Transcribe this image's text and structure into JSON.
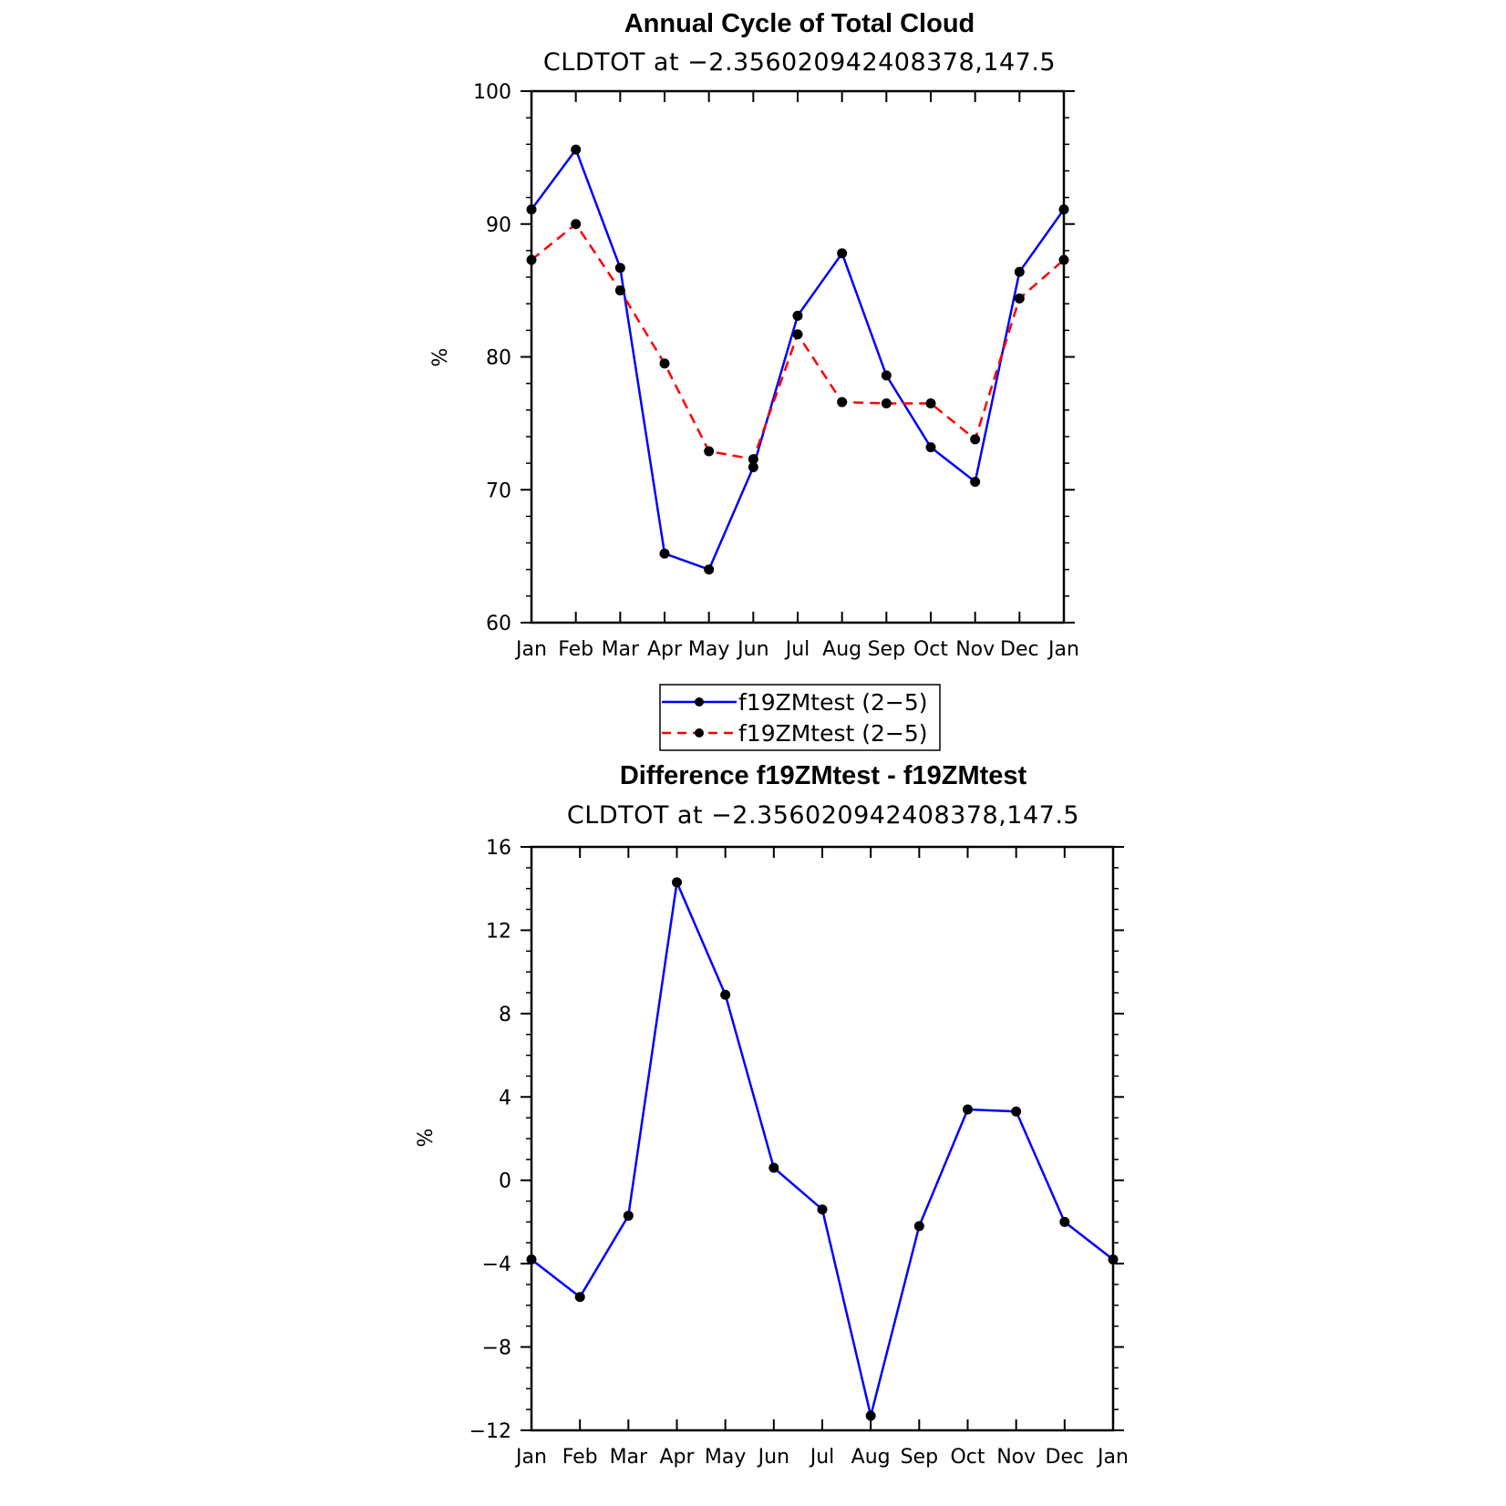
{
  "chart_data": [
    {
      "type": "line",
      "title": "Annual Cycle of Total Cloud",
      "subtitle": "CLDTOT at −2.356020942408378,147.5",
      "xlabel": "",
      "ylabel": "%",
      "categories": [
        "Jan",
        "Feb",
        "Mar",
        "Apr",
        "May",
        "Jun",
        "Jul",
        "Aug",
        "Sep",
        "Oct",
        "Nov",
        "Dec",
        "Jan"
      ],
      "ylim": [
        60,
        100
      ],
      "yticks": [
        "60",
        "70",
        "80",
        "90",
        "100"
      ],
      "ytick_values": [
        60,
        70,
        80,
        90,
        100
      ],
      "series": [
        {
          "name": "f19ZMtest (2−5)",
          "color": "#0000ff",
          "style": "solid",
          "values": [
            91.1,
            95.6,
            86.7,
            65.2,
            64.0,
            71.7,
            83.1,
            87.8,
            78.6,
            73.2,
            70.6,
            86.4,
            91.1
          ]
        },
        {
          "name": "f19ZMtest (2−5)",
          "color": "#ff0000",
          "style": "dashed",
          "values": [
            87.3,
            90.0,
            85.0,
            79.5,
            72.9,
            72.3,
            81.7,
            76.6,
            76.5,
            76.5,
            73.8,
            84.4,
            87.3
          ]
        }
      ],
      "legend": {
        "placement": "bottom-center",
        "entries": [
          "f19ZMtest (2−5)",
          "f19ZMtest (2−5)"
        ]
      }
    },
    {
      "type": "line",
      "title": "Difference f19ZMtest - f19ZMtest",
      "subtitle": "CLDTOT at −2.356020942408378,147.5",
      "xlabel": "",
      "ylabel": "%",
      "categories": [
        "Jan",
        "Feb",
        "Mar",
        "Apr",
        "May",
        "Jun",
        "Jul",
        "Aug",
        "Sep",
        "Oct",
        "Nov",
        "Dec",
        "Jan"
      ],
      "ylim": [
        -12,
        16
      ],
      "yticks": [
        "−12",
        "−8",
        "−4",
        "0",
        "4",
        "8",
        "12",
        "16"
      ],
      "ytick_values": [
        -12,
        -8,
        -4,
        0,
        4,
        8,
        12,
        16
      ],
      "series": [
        {
          "name": "Difference",
          "color": "#0000ff",
          "style": "solid",
          "values": [
            -3.8,
            -5.6,
            -1.7,
            14.3,
            8.9,
            0.6,
            -1.4,
            -11.3,
            -2.2,
            3.4,
            3.3,
            -2.0,
            -3.8
          ]
        }
      ]
    }
  ]
}
